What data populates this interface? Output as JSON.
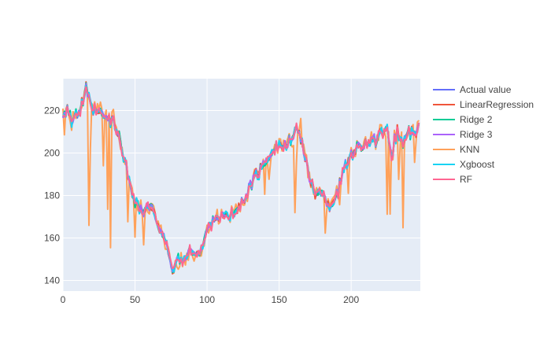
{
  "chart_data": {
    "type": "line",
    "title": "",
    "xlabel": "",
    "ylabel": "",
    "xlim": [
      0,
      248
    ],
    "ylim": [
      135,
      235
    ],
    "x_ticks": [
      0,
      50,
      100,
      150,
      200
    ],
    "y_ticks": [
      140,
      160,
      180,
      200,
      220
    ],
    "grid": true,
    "plot_bgcolor": "#E5ECF6",
    "legend_position": "right",
    "x_count": 248,
    "base_points": [
      [
        0,
        218
      ],
      [
        3,
        222
      ],
      [
        6,
        215
      ],
      [
        9,
        217
      ],
      [
        12,
        220
      ],
      [
        16,
        230
      ],
      [
        20,
        220
      ],
      [
        25,
        219
      ],
      [
        30,
        216
      ],
      [
        35,
        215
      ],
      [
        40,
        205
      ],
      [
        45,
        190
      ],
      [
        50,
        178
      ],
      [
        55,
        172
      ],
      [
        60,
        175
      ],
      [
        65,
        168
      ],
      [
        70,
        162
      ],
      [
        75,
        145
      ],
      [
        80,
        150
      ],
      [
        85,
        150
      ],
      [
        90,
        155
      ],
      [
        95,
        152
      ],
      [
        100,
        163
      ],
      [
        105,
        170
      ],
      [
        110,
        170
      ],
      [
        115,
        170
      ],
      [
        120,
        172
      ],
      [
        125,
        178
      ],
      [
        130,
        185
      ],
      [
        135,
        190
      ],
      [
        140,
        195
      ],
      [
        145,
        202
      ],
      [
        150,
        204
      ],
      [
        155,
        203
      ],
      [
        160,
        207
      ],
      [
        163,
        212
      ],
      [
        166,
        205
      ],
      [
        170,
        190
      ],
      [
        175,
        182
      ],
      [
        180,
        180
      ],
      [
        185,
        175
      ],
      [
        190,
        180
      ],
      [
        195,
        192
      ],
      [
        200,
        200
      ],
      [
        205,
        203
      ],
      [
        210,
        205
      ],
      [
        215,
        205
      ],
      [
        220,
        208
      ],
      [
        225,
        210
      ],
      [
        228,
        200
      ],
      [
        232,
        210
      ],
      [
        236,
        205
      ],
      [
        240,
        210
      ],
      [
        244,
        208
      ],
      [
        247,
        212
      ]
    ],
    "series": [
      {
        "name": "Actual value",
        "color": "#636EFA",
        "dev": 0,
        "seed": 1
      },
      {
        "name": "LinearRegression",
        "color": "#EF553B",
        "dev": 1.6,
        "seed": 2
      },
      {
        "name": "Ridge 2",
        "color": "#00CC96",
        "dev": 1.5,
        "seed": 3
      },
      {
        "name": "Ridge 3",
        "color": "#AB63FA",
        "dev": 1.5,
        "seed": 4
      },
      {
        "name": "KNN",
        "color": "#FFA15A",
        "dev": 4,
        "seed": 5,
        "spikes": [
          [
            1,
            -10
          ],
          [
            18,
            -60
          ],
          [
            19,
            -20
          ],
          [
            28,
            -20
          ],
          [
            31,
            -45
          ],
          [
            33,
            -60
          ],
          [
            45,
            -20
          ],
          [
            50,
            -18
          ],
          [
            56,
            -12
          ],
          [
            80,
            -10
          ],
          [
            140,
            -18
          ],
          [
            143,
            -10
          ],
          [
            161,
            -40
          ],
          [
            162,
            -20
          ],
          [
            165,
            10
          ],
          [
            182,
            -18
          ],
          [
            192,
            -12
          ],
          [
            198,
            -12
          ],
          [
            225,
            -40
          ],
          [
            227,
            -35
          ],
          [
            233,
            -18
          ],
          [
            236,
            -40
          ],
          [
            244,
            -12
          ]
        ]
      },
      {
        "name": "Xgboost",
        "color": "#19D3F3",
        "dev": 1.4,
        "seed": 6
      },
      {
        "name": "RF",
        "color": "#FF6692",
        "dev": 1.7,
        "seed": 7
      }
    ]
  }
}
